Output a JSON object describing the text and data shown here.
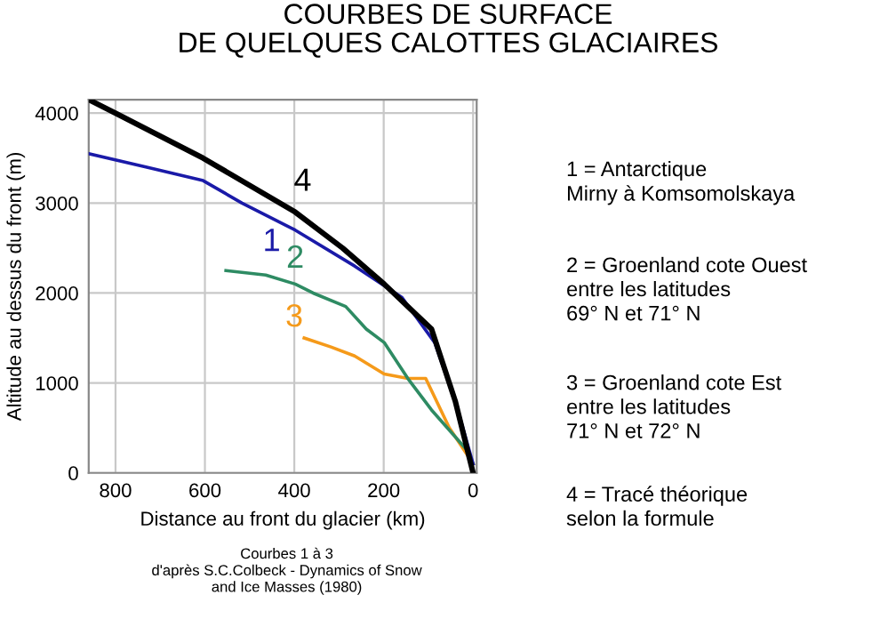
{
  "chart_data": {
    "type": "line",
    "title": "COURBES DE SURFACE\nDE QUELQUES CALOTTES GLACIAIRES",
    "xlabel": "Distance au front du glacier (km)",
    "ylabel": "Altitude au dessus du front (m)",
    "xlim": [
      860,
      -8
    ],
    "xticks": [
      800,
      600,
      400,
      200,
      0
    ],
    "ylim": [
      0,
      4150
    ],
    "yticks": [
      0,
      1000,
      2000,
      3000,
      4000
    ],
    "grid": true,
    "legend": false,
    "marker": "none",
    "line_style": "solid",
    "series": [
      {
        "name": "4",
        "color": "#000000",
        "x": [
          860,
          800,
          604,
          398,
          292,
          199,
          93,
          40,
          0
        ],
        "values": [
          4150,
          4000,
          3500,
          2900,
          2500,
          2100,
          1600,
          800,
          0
        ]
      },
      {
        "name": "1",
        "color": "#1a1aa8",
        "x": [
          860,
          730,
          604,
          517,
          398,
          265,
          159,
          86,
          40,
          0
        ],
        "values": [
          3550,
          3400,
          3250,
          3000,
          2700,
          2300,
          1950,
          1450,
          800,
          100
        ]
      },
      {
        "name": "2",
        "color": "#2e8b63",
        "x": [
          553,
          464,
          398,
          358,
          285,
          239,
          199,
          146,
          93,
          13,
          0
        ],
        "values": [
          2250,
          2200,
          2100,
          2000,
          1850,
          1600,
          1450,
          1050,
          700,
          250,
          100
        ]
      },
      {
        "name": "3",
        "color": "#f59a1a",
        "x": [
          378,
          318,
          265,
          199,
          146,
          106,
          53,
          13,
          0
        ],
        "values": [
          1500,
          1400,
          1300,
          1100,
          1050,
          1050,
          500,
          200,
          100
        ]
      }
    ],
    "annotations": [
      "1 = Antarctique\nMirny à Komsomolskaya",
      "2 = Groenland cote Ouest\nentre les latitudes\n69° N et 71° N",
      "3 = Groenland cote Est\nentre les latitudes\n71° N et 72° N",
      "4 = Tracé théorique\nselon la formule",
      "Courbes 1 à 3\nd'après S.C.Colbeck - Dynamics of Snow\nand Ice Masses (1980)"
    ]
  }
}
